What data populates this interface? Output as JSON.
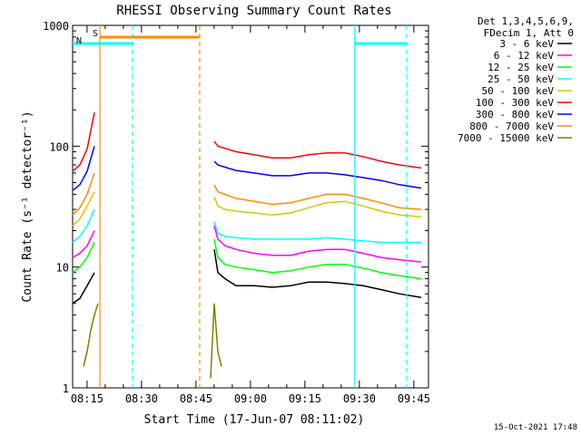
{
  "chart_data": {
    "type": "line",
    "title": "RHESSI Observing Summary Count Rates",
    "xlabel": "Start Time (17-Jun-07 08:11:02)",
    "ylabel": "Count Rate (s⁻¹ detector⁻¹)",
    "x_unit": "minutes after 08:11:02",
    "xlim": [
      0,
      38
    ],
    "ylim": [
      1,
      1000
    ],
    "yscale": "log",
    "x_ticks": [
      {
        "t": 3.97,
        "label": "08:15"
      },
      {
        "t": 18.97,
        "label": "08:30"
      },
      {
        "t": 33.97,
        "label": "08:45"
      },
      {
        "t": 48.97,
        "label": "09:00"
      },
      {
        "t": 63.97,
        "label": "09:15"
      },
      {
        "t": 78.97,
        "label": "09:30"
      },
      {
        "t": 93.97,
        "label": "09:45"
      }
    ],
    "y_ticks": [
      {
        "v": 1,
        "label": "1"
      },
      {
        "v": 10,
        "label": "10"
      },
      {
        "v": 100,
        "label": "100"
      },
      {
        "v": 1000,
        "label": "1000"
      }
    ],
    "x_range_minutes": [
      0,
      98
    ],
    "legend_header": [
      "Det 1,3,4,5,6,9,",
      "FDecim 1, Att 0"
    ],
    "legend_position": "right",
    "series": [
      {
        "name": "3 - 6 keV",
        "color": "#000000",
        "pre": {
          "t": [
            0,
            2,
            4,
            6
          ],
          "v": [
            5,
            5.5,
            7,
            9
          ]
        },
        "post": {
          "t": [
            39,
            40,
            42,
            45,
            50,
            55,
            60,
            65,
            70,
            75,
            80,
            85,
            90,
            96
          ],
          "v": [
            14,
            9,
            8,
            7,
            7,
            6.8,
            7,
            7.5,
            7.5,
            7.3,
            7,
            6.5,
            6,
            5.6
          ]
        }
      },
      {
        "name": "6 - 12 keV",
        "color": "#ff00ff",
        "pre": {
          "t": [
            0,
            2,
            4,
            6
          ],
          "v": [
            12,
            13,
            15,
            20
          ]
        },
        "post": {
          "t": [
            39,
            40,
            42,
            45,
            50,
            55,
            60,
            65,
            70,
            75,
            80,
            85,
            90,
            96
          ],
          "v": [
            22,
            17,
            15,
            14,
            13,
            12.5,
            12.5,
            13.5,
            14,
            14,
            13,
            12,
            11.5,
            11
          ]
        }
      },
      {
        "name": "12 - 25 keV",
        "color": "#00ff00",
        "pre": {
          "t": [
            0,
            2,
            4,
            6
          ],
          "v": [
            9,
            10,
            12,
            16
          ]
        },
        "post": {
          "t": [
            39,
            40,
            42,
            45,
            50,
            55,
            60,
            65,
            70,
            75,
            80,
            85,
            90,
            96
          ],
          "v": [
            17,
            12,
            10.5,
            10,
            9.5,
            9,
            9.3,
            10,
            10.5,
            10.5,
            9.8,
            9,
            8.5,
            8
          ]
        }
      },
      {
        "name": "25 - 50 keV",
        "color": "#00ffff",
        "pre": {
          "t": [
            0,
            2,
            4,
            6
          ],
          "v": [
            16,
            18,
            22,
            30
          ]
        },
        "post": {
          "t": [
            39,
            40,
            42,
            45,
            50,
            55,
            60,
            65,
            70,
            75,
            80,
            85,
            90,
            96
          ],
          "v": [
            24,
            19,
            18,
            17.5,
            17,
            17,
            17,
            17,
            17.5,
            17,
            16.5,
            16,
            16,
            16
          ]
        }
      },
      {
        "name": "50 - 100 keV",
        "color": "#cccc00",
        "pre": {
          "t": [
            0,
            2,
            4,
            6
          ],
          "v": [
            22,
            25,
            32,
            42
          ]
        },
        "post": {
          "t": [
            39,
            40,
            42,
            45,
            50,
            55,
            60,
            65,
            70,
            75,
            80,
            85,
            90,
            96
          ],
          "v": [
            38,
            32,
            30,
            29,
            28,
            27,
            28,
            31,
            34,
            35,
            32,
            29,
            27,
            26
          ]
        }
      },
      {
        "name": "100 - 300 keV",
        "color": "#ff0000",
        "pre": {
          "t": [
            0,
            2,
            4,
            6
          ],
          "v": [
            62,
            70,
            95,
            190
          ]
        },
        "post": {
          "t": [
            39,
            40,
            42,
            45,
            50,
            55,
            60,
            65,
            70,
            75,
            80,
            85,
            90,
            96
          ],
          "v": [
            110,
            100,
            96,
            90,
            85,
            80,
            80,
            85,
            88,
            88,
            82,
            75,
            70,
            66
          ]
        }
      },
      {
        "name": "300 - 800 keV",
        "color": "#0000ff",
        "pre": {
          "t": [
            0,
            2,
            4,
            6
          ],
          "v": [
            43,
            48,
            62,
            100
          ]
        },
        "post": {
          "t": [
            39,
            40,
            42,
            45,
            50,
            55,
            60,
            65,
            70,
            75,
            80,
            85,
            90,
            96
          ],
          "v": [
            75,
            70,
            67,
            63,
            60,
            57,
            57,
            60,
            60,
            58,
            55,
            52,
            48,
            45
          ]
        }
      },
      {
        "name": "800 - 7000 keV",
        "color": "#ff8c00",
        "pre": {
          "t": [
            0,
            2,
            4,
            6
          ],
          "v": [
            27,
            31,
            40,
            60
          ]
        },
        "post": {
          "t": [
            39,
            40,
            42,
            45,
            50,
            55,
            60,
            65,
            70,
            75,
            80,
            85,
            90,
            96
          ],
          "v": [
            48,
            42,
            40,
            37,
            35,
            33,
            34,
            37,
            40,
            40,
            37,
            34,
            31,
            30
          ]
        }
      },
      {
        "name": "7000 - 15000 keV",
        "color": "#808000",
        "pre": {
          "t": [
            3,
            4,
            5,
            6,
            7
          ],
          "v": [
            1.5,
            2,
            3,
            4,
            5
          ]
        },
        "post": {
          "t": [
            38,
            39,
            40,
            41
          ],
          "v": [
            1.2,
            5,
            2,
            1.5
          ]
        }
      }
    ],
    "state_bars": [
      {
        "label": "S",
        "color": "#ff8c00",
        "t_start": 7.5,
        "t_end": 35
      },
      {
        "label": "N",
        "color": "#00ffff",
        "t_start": 0,
        "t_end": 16.5
      },
      {
        "label": "",
        "color": "#00ffff",
        "t_start": 77.7,
        "t_end": 92
      }
    ],
    "vertical_lines": [
      {
        "t": 7.5,
        "color": "#ff8c00",
        "style": "solid"
      },
      {
        "t": 16.5,
        "color": "#00ffff",
        "style": "dashed"
      },
      {
        "t": 35.0,
        "color": "#ff8c00",
        "style": "dashed"
      },
      {
        "t": 77.7,
        "color": "#00ffff",
        "style": "solid"
      },
      {
        "t": 92.0,
        "color": "#00ffff",
        "style": "dashed"
      }
    ]
  },
  "footer_timestamp": "15-Oct-2021 17:48"
}
